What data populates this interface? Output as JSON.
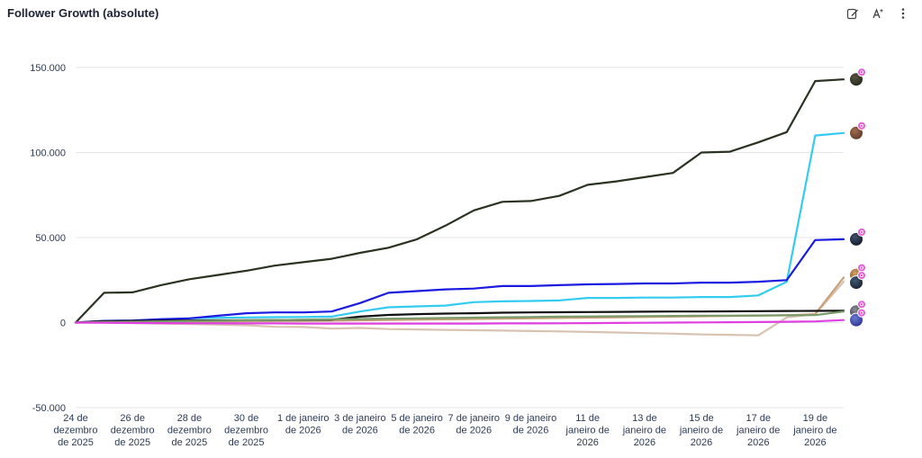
{
  "panel": {
    "title": "Follower Growth (absolute)"
  },
  "toolbar": {
    "icons": [
      "edit-icon",
      "ai-icon",
      "more-vertical-icon"
    ]
  },
  "chart_data": {
    "type": "line",
    "title": "Follower Growth (absolute)",
    "xlabel": "",
    "ylabel": "",
    "ylim": [
      -50000,
      150000
    ],
    "y_ticks": [
      {
        "value": 150000,
        "label": "150.000"
      },
      {
        "value": 100000,
        "label": "100.000"
      },
      {
        "value": 50000,
        "label": "50.000"
      },
      {
        "value": 0,
        "label": "0"
      },
      {
        "value": -50000,
        "label": "-50.000"
      }
    ],
    "x": [
      "2025-12-24",
      "2025-12-25",
      "2025-12-26",
      "2025-12-27",
      "2025-12-28",
      "2025-12-29",
      "2025-12-30",
      "2025-12-31",
      "2026-01-01",
      "2026-01-02",
      "2026-01-03",
      "2026-01-04",
      "2026-01-05",
      "2026-01-06",
      "2026-01-07",
      "2026-01-08",
      "2026-01-09",
      "2026-01-10",
      "2026-01-11",
      "2026-01-12",
      "2026-01-13",
      "2026-01-14",
      "2026-01-15",
      "2026-01-16",
      "2026-01-17",
      "2026-01-18",
      "2026-01-19",
      "2026-01-20"
    ],
    "x_ticks": [
      {
        "index": 0,
        "label": [
          "24 de",
          "dezembro",
          "de 2025"
        ]
      },
      {
        "index": 2,
        "label": [
          "26 de",
          "dezembro",
          "de 2025"
        ]
      },
      {
        "index": 4,
        "label": [
          "28 de",
          "dezembro",
          "de 2025"
        ]
      },
      {
        "index": 6,
        "label": [
          "30 de",
          "dezembro",
          "de 2025"
        ]
      },
      {
        "index": 8,
        "label": [
          "1 de janeiro",
          "de 2026"
        ]
      },
      {
        "index": 10,
        "label": [
          "3 de janeiro",
          "de 2026"
        ]
      },
      {
        "index": 12,
        "label": [
          "5 de janeiro",
          "de 2026"
        ]
      },
      {
        "index": 14,
        "label": [
          "7 de janeiro",
          "de 2026"
        ]
      },
      {
        "index": 16,
        "label": [
          "9 de janeiro",
          "de 2026"
        ]
      },
      {
        "index": 18,
        "label": [
          "11 de",
          "janeiro de",
          "2026"
        ]
      },
      {
        "index": 20,
        "label": [
          "13 de",
          "janeiro de",
          "2026"
        ]
      },
      {
        "index": 22,
        "label": [
          "15 de",
          "janeiro de",
          "2026"
        ]
      },
      {
        "index": 24,
        "label": [
          "17 de",
          "janeiro de",
          "2026"
        ]
      },
      {
        "index": 26,
        "label": [
          "19 de",
          "janeiro de",
          "2026"
        ]
      }
    ],
    "grid": true,
    "series": [
      {
        "color": "#2a3322",
        "values": [
          0,
          17500,
          17800,
          22000,
          25500,
          28000,
          30500,
          33500,
          35500,
          37500,
          41000,
          44000,
          49000,
          57000,
          66000,
          71000,
          71500,
          74500,
          81000,
          83000,
          85500,
          88000,
          100000,
          100500,
          106000,
          112000,
          142000,
          143000
        ]
      },
      {
        "color": "#33ccf0",
        "values": [
          0,
          1000,
          1200,
          1800,
          2500,
          2800,
          3000,
          3200,
          3300,
          3500,
          6500,
          9000,
          9500,
          10000,
          12000,
          12500,
          12700,
          13000,
          14500,
          14500,
          14700,
          14700,
          15000,
          15000,
          16000,
          24000,
          110000,
          111500
        ]
      },
      {
        "color": "#1a1ae0",
        "values": [
          0,
          1000,
          1200,
          2000,
          2500,
          4000,
          5500,
          6000,
          6000,
          6500,
          11500,
          17500,
          18500,
          19500,
          20000,
          21500,
          21500,
          22000,
          22500,
          22700,
          23000,
          23000,
          23500,
          23500,
          24000,
          25000,
          48500,
          49000
        ]
      },
      {
        "color": "#d8c2b2",
        "values": [
          0,
          -100,
          -300,
          -600,
          -900,
          -1200,
          -1600,
          -2500,
          -2600,
          -3500,
          -3200,
          -3800,
          -4000,
          -4300,
          -4500,
          -4700,
          -5000,
          -5200,
          -5500,
          -5800,
          -6200,
          -6500,
          -7000,
          -7200,
          -7500,
          3000,
          5000,
          24000
        ]
      },
      {
        "color": "#c9a07a",
        "values": [
          0,
          200,
          300,
          400,
          500,
          600,
          800,
          900,
          1000,
          1100,
          1300,
          1500,
          1700,
          1900,
          2100,
          2300,
          2500,
          2700,
          2900,
          3100,
          3300,
          3500,
          3700,
          3900,
          4100,
          4300,
          5000,
          26500
        ]
      },
      {
        "color": "#111111",
        "values": [
          0,
          800,
          1000,
          1100,
          1200,
          1300,
          1400,
          1500,
          1600,
          1700,
          3500,
          4500,
          5000,
          5300,
          5500,
          5800,
          6000,
          6100,
          6200,
          6300,
          6400,
          6500,
          6500,
          6600,
          6700,
          6800,
          6900,
          7000
        ]
      },
      {
        "color": "#7a9a6a",
        "values": [
          0,
          300,
          500,
          700,
          900,
          1100,
          1300,
          1500,
          1700,
          1900,
          2100,
          2300,
          2500,
          2700,
          2900,
          3100,
          3300,
          3500,
          3600,
          3700,
          3800,
          3900,
          4000,
          4100,
          4200,
          4300,
          4400,
          6500
        ]
      },
      {
        "color": "#e040e0",
        "values": [
          0,
          -100,
          -200,
          -300,
          -400,
          -400,
          -500,
          -500,
          -600,
          -600,
          -600,
          -600,
          -600,
          -600,
          -600,
          -500,
          -500,
          -400,
          -300,
          -200,
          -100,
          0,
          100,
          200,
          300,
          500,
          700,
          1500
        ]
      }
    ],
    "end_markers": [
      {
        "value": 143000,
        "colors": [
          "#5a5040",
          "#1e2a1a"
        ]
      },
      {
        "value": 111500,
        "colors": [
          "#a06a50",
          "#5a3828"
        ]
      },
      {
        "value": 49000,
        "colors": [
          "#40506a",
          "#101828"
        ]
      },
      {
        "value": 28000,
        "colors": [
          "#d8a060",
          "#6a4a2a"
        ]
      },
      {
        "value": 23500,
        "colors": [
          "#405a70",
          "#182030"
        ]
      },
      {
        "value": 6500,
        "colors": [
          "#909098",
          "#30303a"
        ]
      },
      {
        "value": 1500,
        "colors": [
          "#6a7ad0",
          "#2a3090"
        ]
      }
    ],
    "badge_color": "#e85cd8"
  }
}
